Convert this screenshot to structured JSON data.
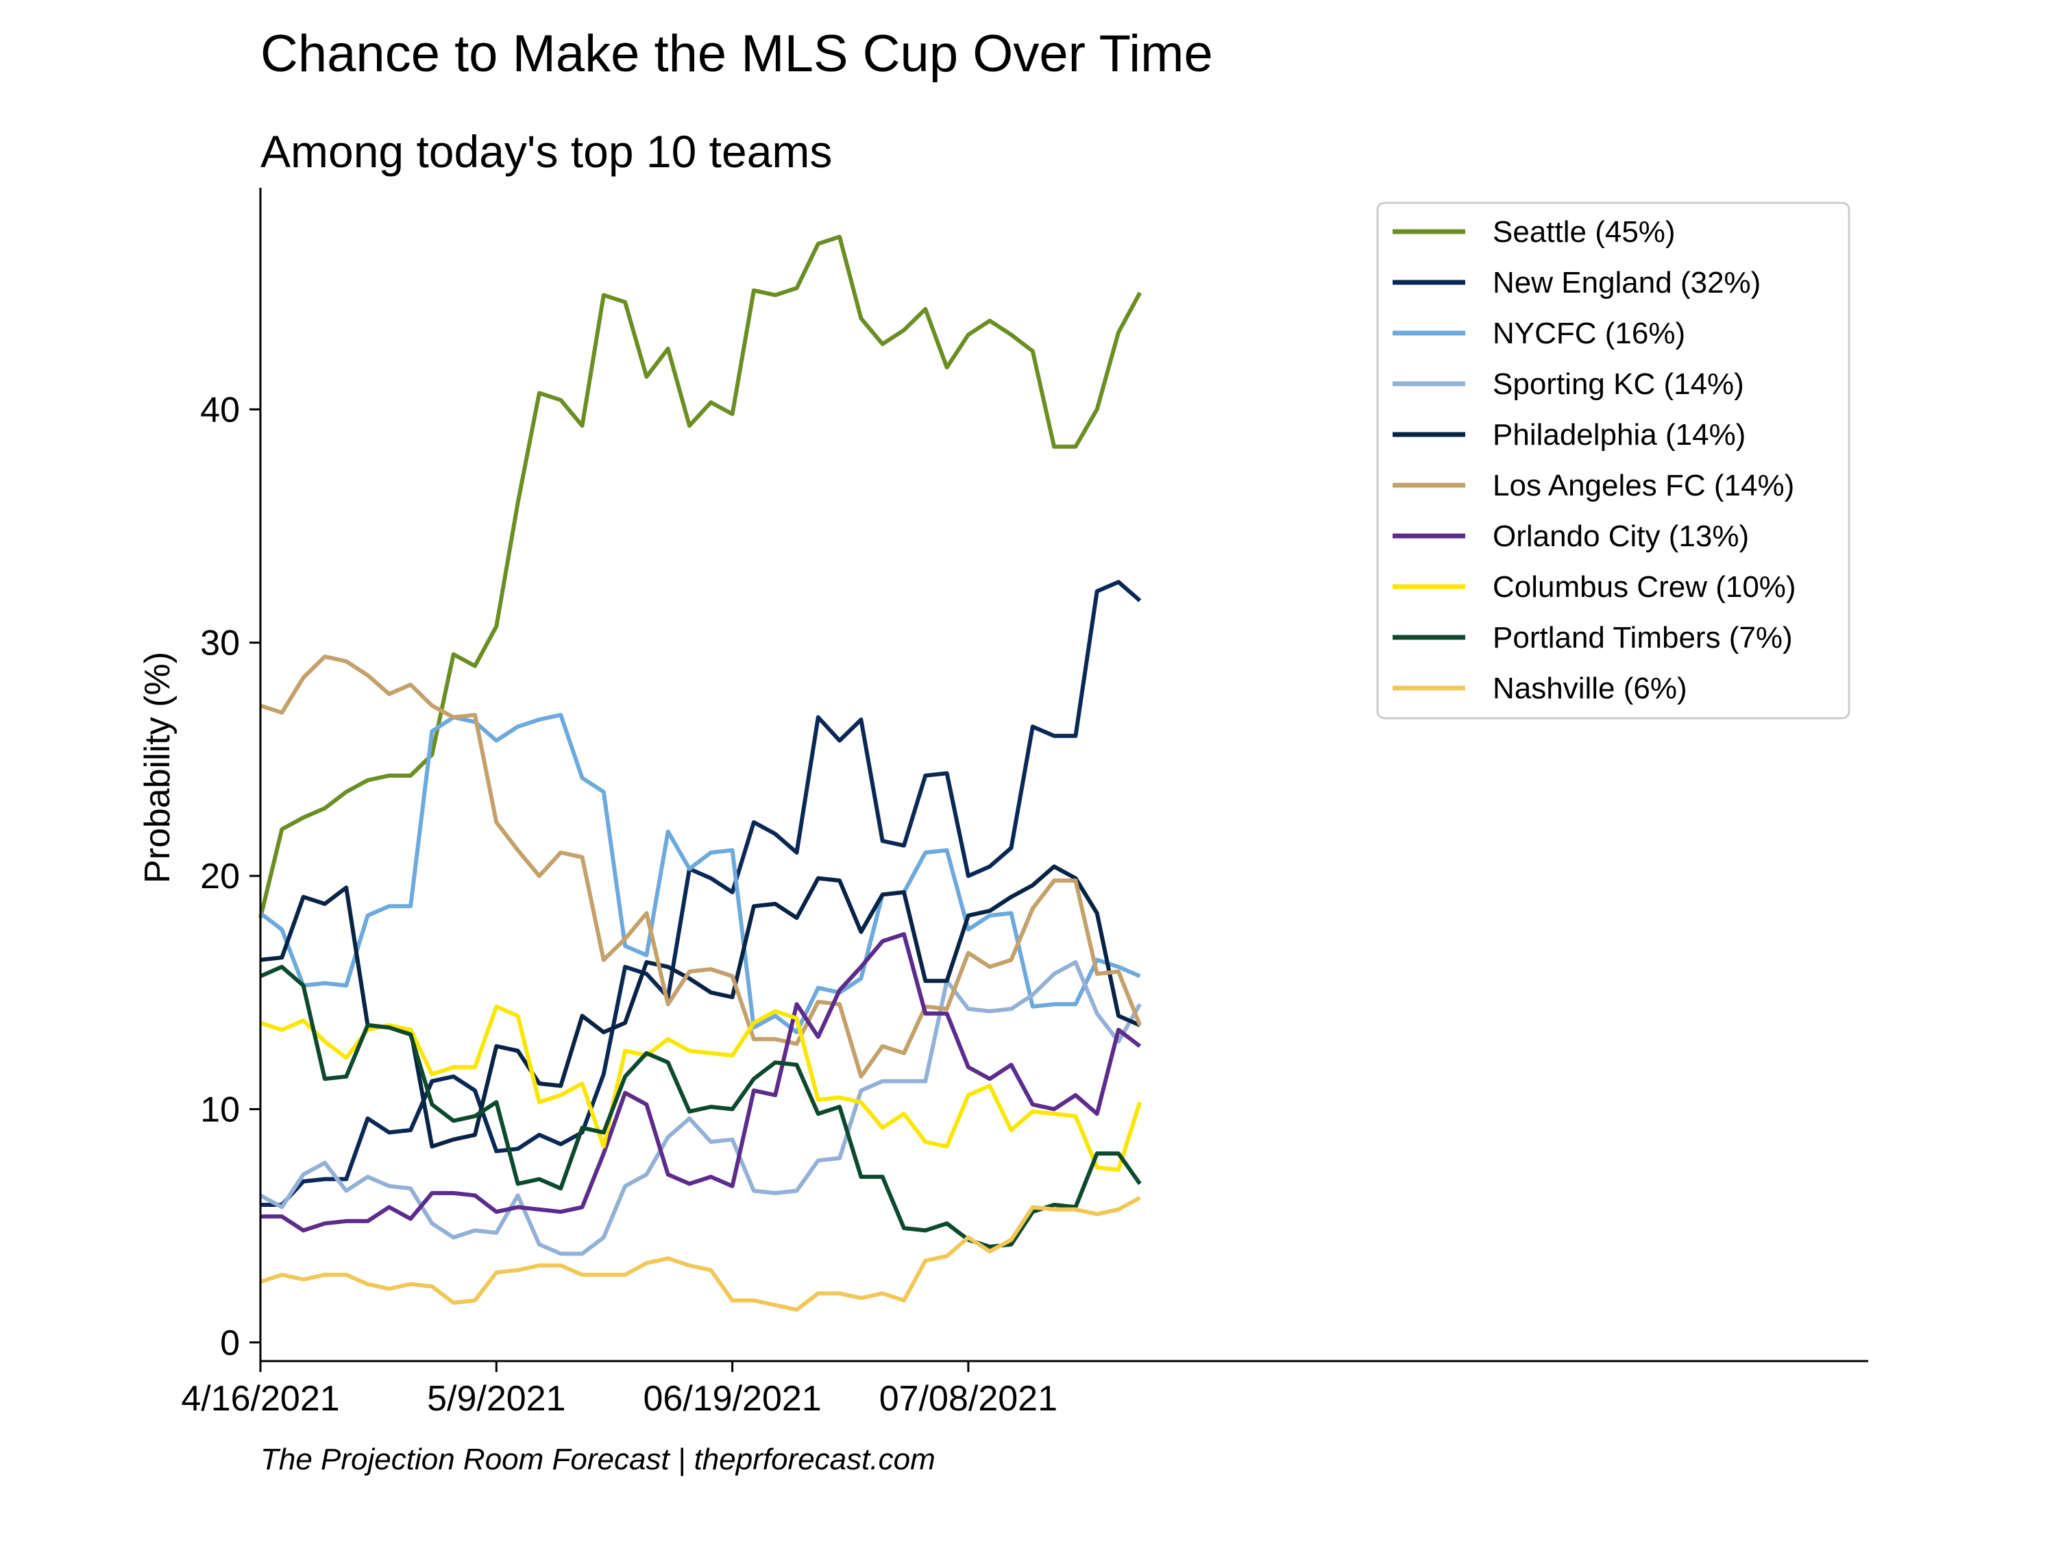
{
  "chart_data": {
    "type": "line",
    "title": "Chance to Make the MLS Cup Over Time",
    "subtitle": "Among today's top 10 teams",
    "ylabel": "Probability (%)",
    "xlabel": "",
    "source": "The Projection Room Forecast | theprforecast.com",
    "x_tick_labels": [
      "4/16/2021",
      "5/9/2021",
      "06/19/2021",
      "07/08/2021"
    ],
    "x_tick_index": [
      0,
      11,
      22,
      33
    ],
    "y_ticks": [
      0,
      10,
      20,
      30,
      40
    ],
    "ylim": [
      -0.8,
      49.5
    ],
    "xlim": [
      0,
      75
    ],
    "grid": false,
    "legend": "top-right",
    "series": [
      {
        "name": "Seattle (45%)",
        "color": "#6b8e23",
        "values": [
          18.2,
          22.0,
          22.5,
          22.9,
          23.6,
          24.1,
          24.3,
          24.3,
          25.2,
          29.5,
          29.0,
          30.7,
          36.0,
          40.7,
          40.4,
          39.3,
          44.9,
          44.6,
          41.4,
          42.6,
          39.3,
          40.3,
          39.8,
          45.1,
          44.9,
          45.2,
          47.1,
          47.4,
          43.9,
          42.8,
          43.4,
          44.3,
          41.8,
          43.2,
          43.8,
          43.2,
          42.5,
          38.4,
          38.4,
          40.0,
          43.3,
          45.0
        ]
      },
      {
        "name": "New England (32%)",
        "color": "#0a2856",
        "values": [
          5.9,
          5.9,
          6.9,
          7.0,
          7.0,
          9.6,
          9.0,
          9.1,
          11.2,
          11.4,
          10.8,
          8.2,
          8.3,
          8.9,
          8.5,
          9.0,
          11.5,
          16.1,
          15.8,
          14.8,
          20.3,
          19.9,
          19.3,
          22.3,
          21.8,
          21.0,
          26.8,
          25.8,
          26.7,
          21.5,
          21.3,
          24.3,
          24.4,
          20.0,
          20.4,
          21.2,
          26.4,
          26.0,
          26.0,
          32.2,
          32.6,
          31.8
        ]
      },
      {
        "name": "NYCFC (16%)",
        "color": "#6ca9dc",
        "values": [
          18.4,
          17.7,
          15.3,
          15.4,
          15.3,
          18.3,
          18.7,
          18.7,
          26.2,
          26.8,
          26.6,
          25.8,
          26.4,
          26.7,
          26.9,
          24.2,
          23.6,
          17.0,
          16.6,
          21.9,
          20.3,
          21.0,
          21.1,
          13.5,
          14.0,
          13.3,
          15.2,
          15.0,
          15.6,
          19.2,
          19.3,
          21.0,
          21.1,
          17.7,
          18.3,
          18.4,
          14.4,
          14.5,
          14.5,
          16.4,
          16.1,
          15.7
        ]
      },
      {
        "name": "Sporting KC (14%)",
        "color": "#93b1d7",
        "values": [
          6.3,
          5.8,
          7.2,
          7.7,
          6.5,
          7.1,
          6.7,
          6.6,
          5.1,
          4.5,
          4.8,
          4.7,
          6.3,
          4.2,
          3.8,
          3.8,
          4.5,
          6.7,
          7.2,
          8.8,
          9.6,
          8.6,
          8.7,
          6.5,
          6.4,
          6.5,
          7.8,
          7.9,
          10.8,
          11.2,
          11.2,
          11.2,
          15.5,
          14.3,
          14.2,
          14.3,
          14.9,
          15.8,
          16.3,
          14.1,
          12.9,
          14.5
        ]
      },
      {
        "name": "Philadelphia (14%)",
        "color": "#072345",
        "values": [
          16.4,
          16.5,
          19.1,
          18.8,
          19.5,
          13.6,
          13.5,
          13.4,
          8.4,
          8.7,
          8.9,
          12.7,
          12.5,
          11.1,
          11.0,
          14.0,
          13.3,
          13.7,
          16.3,
          16.1,
          15.6,
          15.0,
          14.8,
          18.7,
          18.8,
          18.2,
          19.9,
          19.8,
          17.6,
          19.2,
          19.3,
          15.5,
          15.5,
          18.3,
          18.5,
          19.1,
          19.6,
          20.4,
          19.9,
          18.4,
          14.0,
          13.6
        ]
      },
      {
        "name": "Los Angeles FC (14%)",
        "color": "#c4a06a",
        "values": [
          27.3,
          27.0,
          28.5,
          29.4,
          29.2,
          28.6,
          27.8,
          28.2,
          27.3,
          26.8,
          26.9,
          22.3,
          21.1,
          20.0,
          21.0,
          20.8,
          16.4,
          17.3,
          18.4,
          14.5,
          15.9,
          16.0,
          15.7,
          13.0,
          13.0,
          12.8,
          14.6,
          14.5,
          11.4,
          12.7,
          12.4,
          14.4,
          14.3,
          16.7,
          16.1,
          16.4,
          18.6,
          19.8,
          19.8,
          15.8,
          15.9,
          13.6
        ]
      },
      {
        "name": "Orlando City (13%)",
        "color": "#5c2b8c",
        "values": [
          5.4,
          5.4,
          4.8,
          5.1,
          5.2,
          5.2,
          5.8,
          5.3,
          6.4,
          6.4,
          6.3,
          5.6,
          5.8,
          5.7,
          5.6,
          5.8,
          8.1,
          10.7,
          10.2,
          7.2,
          6.8,
          7.1,
          6.7,
          10.8,
          10.6,
          14.5,
          13.1,
          15.1,
          16.1,
          17.2,
          17.5,
          14.1,
          14.1,
          11.8,
          11.3,
          11.9,
          10.2,
          10.0,
          10.6,
          9.8,
          13.4,
          12.7
        ]
      },
      {
        "name": "Columbus Crew (10%)",
        "color": "#fbe600",
        "values": [
          13.7,
          13.4,
          13.8,
          12.9,
          12.2,
          13.4,
          13.6,
          13.4,
          11.5,
          11.8,
          11.8,
          14.4,
          14.0,
          10.3,
          10.6,
          11.1,
          8.4,
          12.5,
          12.3,
          13.0,
          12.5,
          12.4,
          12.3,
          13.7,
          14.2,
          13.9,
          10.4,
          10.5,
          10.3,
          9.2,
          9.8,
          8.6,
          8.4,
          10.6,
          11.0,
          9.1,
          9.9,
          9.8,
          9.7,
          7.5,
          7.4,
          10.3
        ]
      },
      {
        "name": "Portland Timbers (7%)",
        "color": "#0d4a2d",
        "values": [
          15.7,
          16.1,
          15.3,
          11.3,
          11.4,
          13.6,
          13.5,
          13.2,
          10.2,
          9.5,
          9.7,
          10.3,
          6.8,
          7.0,
          6.6,
          9.2,
          9.0,
          11.4,
          12.4,
          12.0,
          9.9,
          10.1,
          10.0,
          11.3,
          12.0,
          11.9,
          9.8,
          10.1,
          7.1,
          7.1,
          4.9,
          4.8,
          5.1,
          4.4,
          4.1,
          4.2,
          5.6,
          5.9,
          5.8,
          8.1,
          8.1,
          6.8
        ]
      },
      {
        "name": "Nashville (6%)",
        "color": "#f1c858",
        "values": [
          2.6,
          2.9,
          2.7,
          2.9,
          2.9,
          2.5,
          2.3,
          2.5,
          2.4,
          1.7,
          1.8,
          3.0,
          3.1,
          3.3,
          3.3,
          2.9,
          2.9,
          2.9,
          3.4,
          3.6,
          3.3,
          3.1,
          1.8,
          1.8,
          1.6,
          1.4,
          2.1,
          2.1,
          1.9,
          2.1,
          1.8,
          3.5,
          3.7,
          4.5,
          3.9,
          4.4,
          5.8,
          5.7,
          5.7,
          5.5,
          5.7,
          6.2
        ]
      }
    ]
  }
}
